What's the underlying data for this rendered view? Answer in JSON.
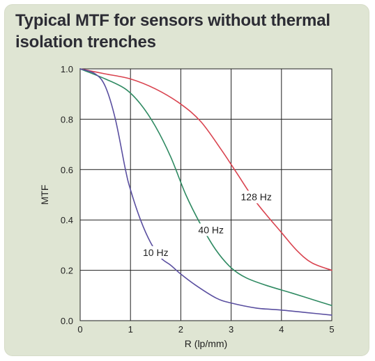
{
  "chart_data": {
    "type": "line",
    "title": "Typical MTF for sensors without thermal isolation trenches",
    "xlabel": "R (lp/mm)",
    "ylabel": "MTF",
    "xlim": [
      0,
      5
    ],
    "ylim": [
      0,
      1.0
    ],
    "x_ticks": [
      "0",
      "1",
      "2",
      "3",
      "4",
      "5"
    ],
    "y_ticks": [
      "0.0",
      "0.2",
      "0.4",
      "0.6",
      "0.8",
      "1.0"
    ],
    "grid": true,
    "series": [
      {
        "name": "128 Hz",
        "color": "#d9434f",
        "points": [
          [
            0,
            1.0
          ],
          [
            0.5,
            0.98
          ],
          [
            1.0,
            0.96
          ],
          [
            1.5,
            0.92
          ],
          [
            2.0,
            0.86
          ],
          [
            2.4,
            0.79
          ],
          [
            2.8,
            0.68
          ],
          [
            3.1,
            0.59
          ],
          [
            3.5,
            0.47
          ],
          [
            4.0,
            0.35
          ],
          [
            4.3,
            0.28
          ],
          [
            4.6,
            0.23
          ],
          [
            5.0,
            0.2
          ]
        ],
        "label": {
          "text": "128 Hz",
          "x": 3.5,
          "y": 0.48
        }
      },
      {
        "name": "40 Hz",
        "color": "#2f8a62",
        "points": [
          [
            0,
            1.0
          ],
          [
            0.5,
            0.96
          ],
          [
            0.9,
            0.92
          ],
          [
            1.2,
            0.86
          ],
          [
            1.5,
            0.77
          ],
          [
            1.8,
            0.65
          ],
          [
            2.1,
            0.5
          ],
          [
            2.4,
            0.38
          ],
          [
            2.7,
            0.28
          ],
          [
            3.0,
            0.21
          ],
          [
            3.3,
            0.17
          ],
          [
            3.7,
            0.14
          ],
          [
            4.2,
            0.11
          ],
          [
            4.6,
            0.085
          ],
          [
            5.0,
            0.06
          ]
        ],
        "label": {
          "text": "40 Hz",
          "x": 2.6,
          "y": 0.35
        }
      },
      {
        "name": "10 Hz",
        "color": "#5a4fa0",
        "points": [
          [
            0,
            1.0
          ],
          [
            0.3,
            0.98
          ],
          [
            0.5,
            0.93
          ],
          [
            0.7,
            0.8
          ],
          [
            0.9,
            0.6
          ],
          [
            1.0,
            0.52
          ],
          [
            1.2,
            0.4
          ],
          [
            1.4,
            0.31
          ],
          [
            1.6,
            0.25
          ],
          [
            1.8,
            0.22
          ],
          [
            2.0,
            0.185
          ],
          [
            2.3,
            0.14
          ],
          [
            2.7,
            0.09
          ],
          [
            3.0,
            0.07
          ],
          [
            3.5,
            0.05
          ],
          [
            4.0,
            0.042
          ],
          [
            4.5,
            0.032
          ],
          [
            5.0,
            0.022
          ]
        ],
        "label": {
          "text": "10 Hz",
          "x": 1.5,
          "y": 0.26
        }
      }
    ]
  }
}
